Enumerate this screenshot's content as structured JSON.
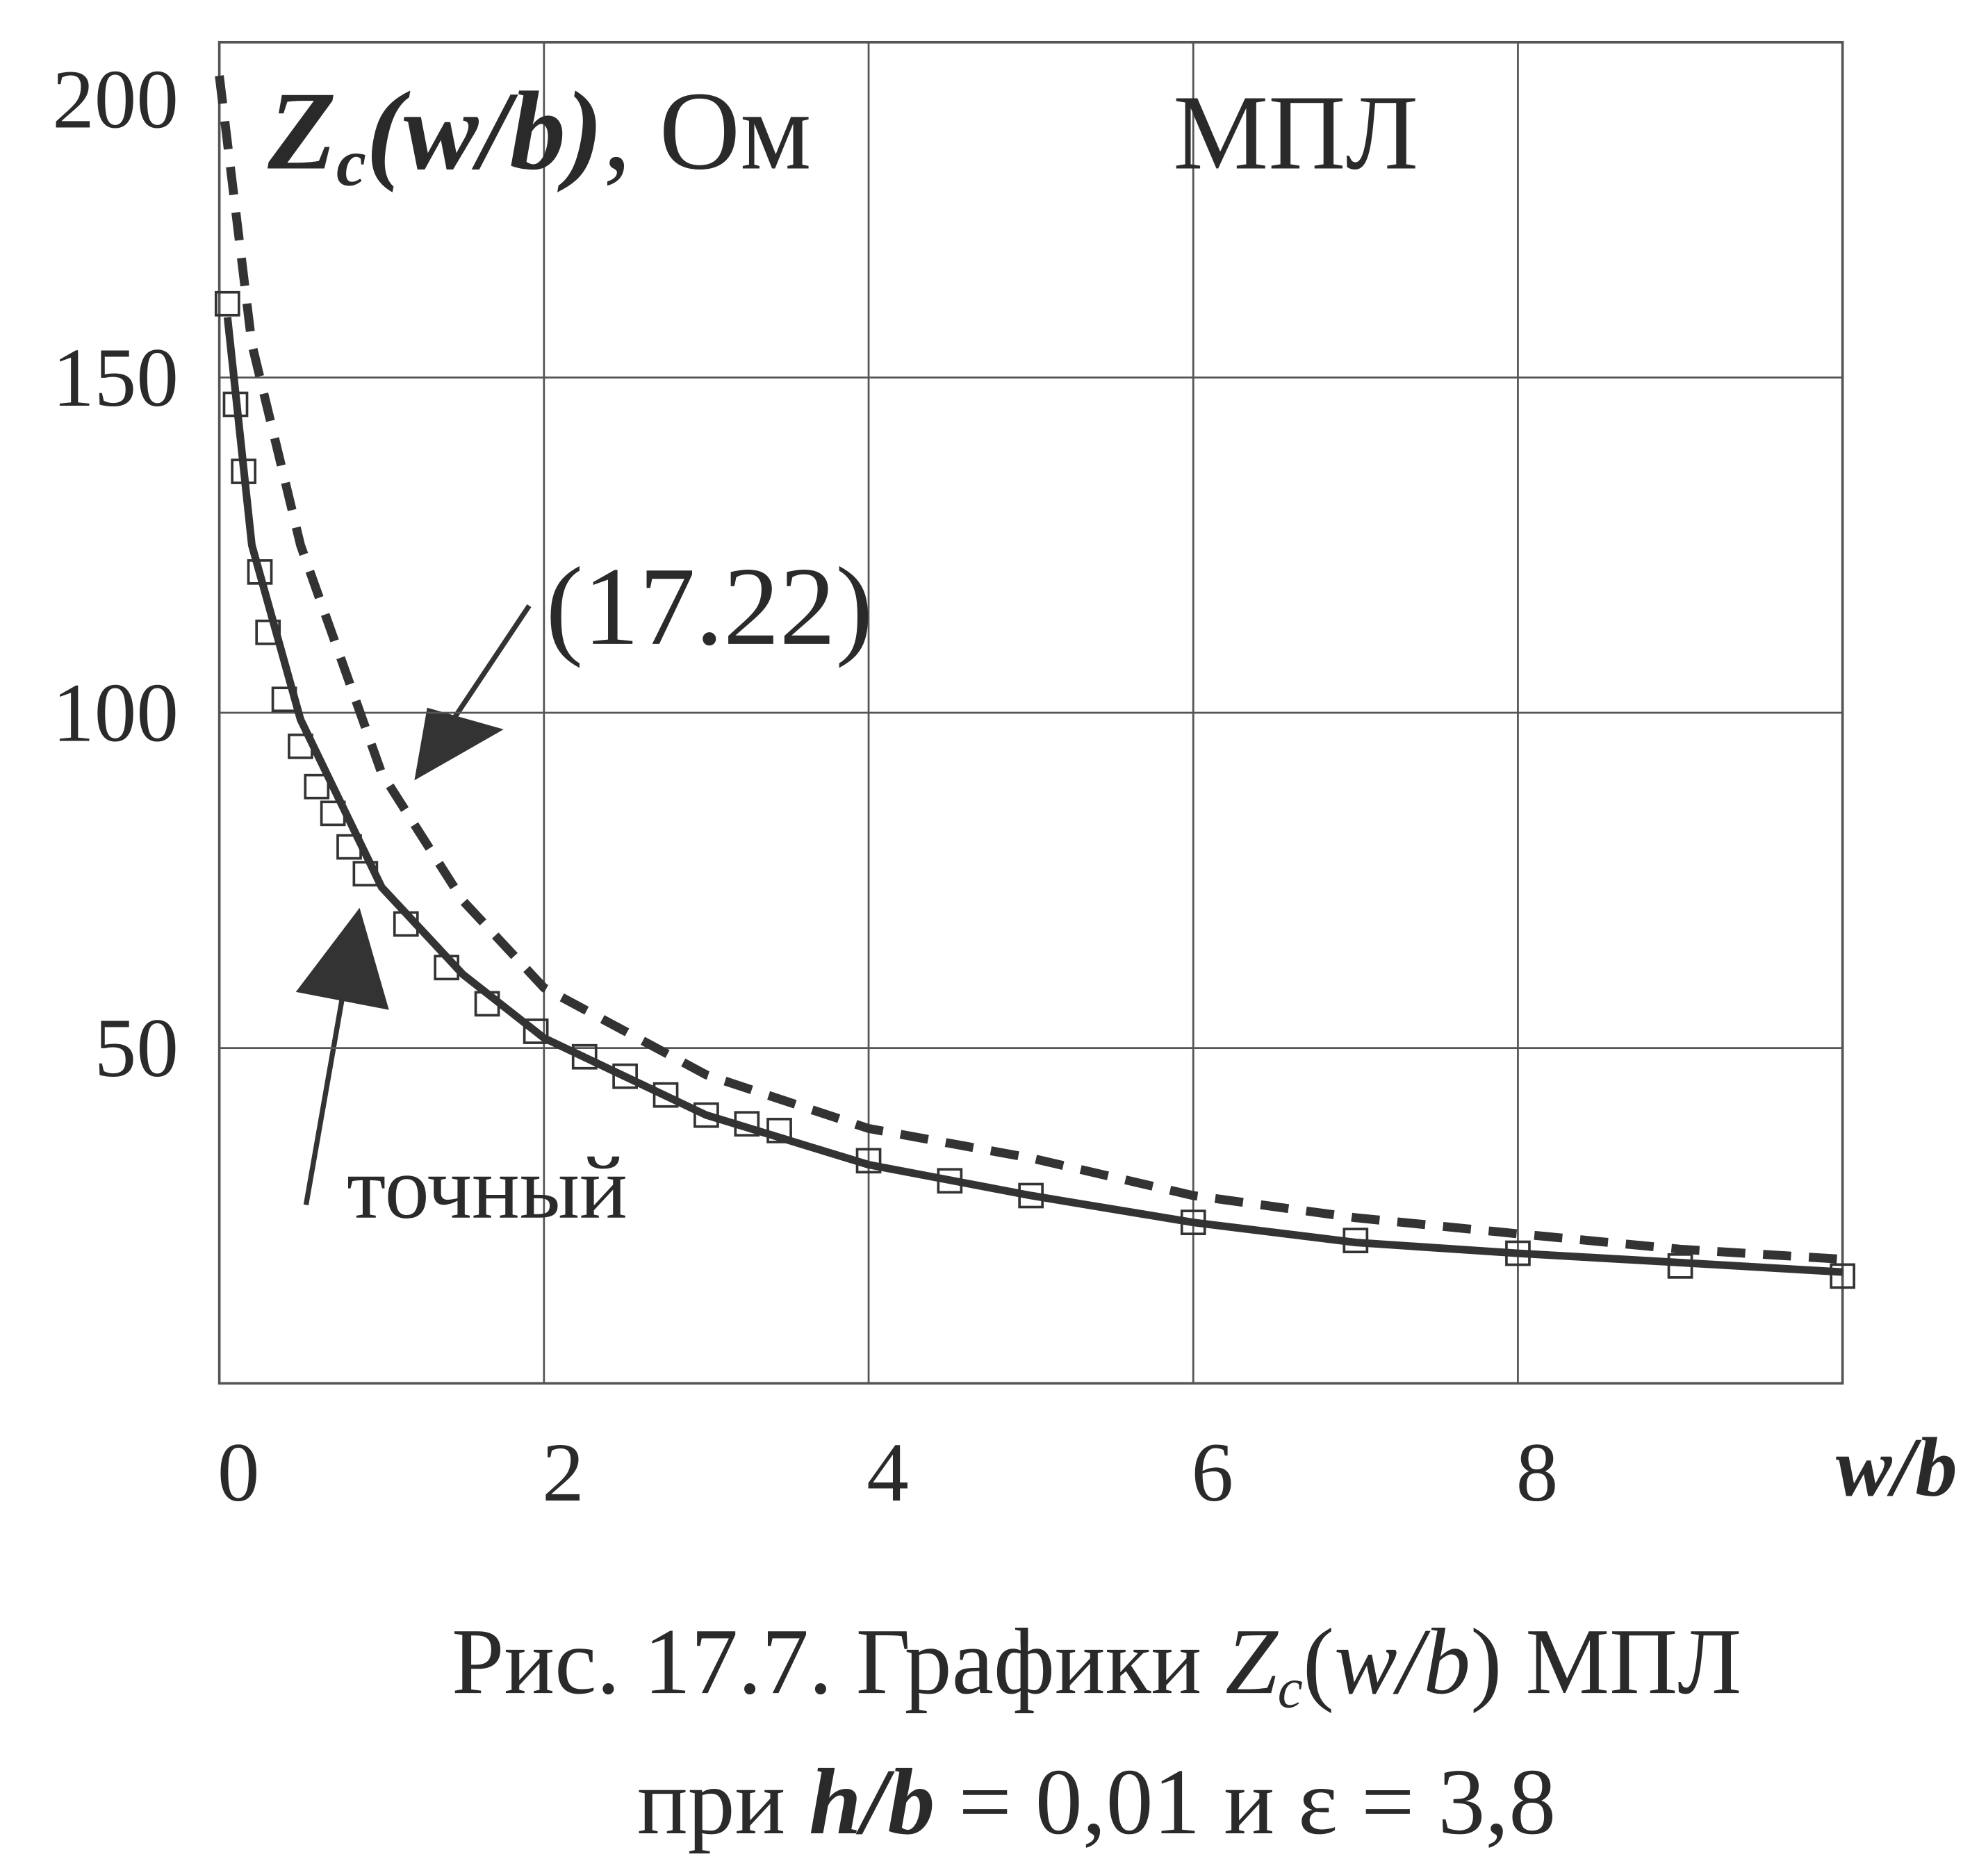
{
  "chart_data": {
    "type": "line",
    "title": [
      {
        "text": "Z",
        "italic": true,
        "bold": true
      },
      {
        "text": "c",
        "italic": true,
        "bold": true,
        "sub": true
      },
      {
        "text": "(w/b)",
        "italic": true,
        "bold": true
      },
      {
        "text": ", Ом"
      }
    ],
    "annotation": "МПЛ",
    "x_label": "w/b",
    "xlim": [
      0,
      10
    ],
    "xticks": [
      0,
      2,
      4,
      6,
      8
    ],
    "ylim": [
      0,
      200
    ],
    "yticks": [
      50,
      100,
      150,
      200
    ],
    "grid": true,
    "series": [
      {
        "name": "точный",
        "color": "#333333",
        "style": "solid",
        "x": [
          0.05,
          0.2,
          0.5,
          1,
          1.5,
          2,
          3,
          4,
          5,
          6,
          7,
          8,
          9,
          10
        ],
        "values": [
          159,
          125,
          99,
          74,
          61,
          51.5,
          40,
          32.6,
          28,
          24,
          21,
          19.4,
          18,
          16.6
        ]
      },
      {
        "name": "(17.22)",
        "color": "#333333",
        "style": "dashed",
        "x": [
          0,
          0.2,
          0.5,
          1,
          1.5,
          2,
          3,
          4,
          5,
          6,
          7,
          8,
          9,
          10
        ],
        "values": [
          195,
          155,
          125,
          91,
          72,
          59,
          46,
          38,
          33.6,
          28,
          24.7,
          22.3,
          20,
          18.5
        ]
      },
      {
        "color": "#333333",
        "style": "squares",
        "x": [
          0.05,
          0.1,
          0.15,
          0.25,
          0.3,
          0.4,
          0.5,
          0.6,
          0.7,
          0.8,
          0.9,
          1.15,
          1.4,
          1.65,
          1.95,
          2.25,
          2.5,
          2.75,
          3.0,
          3.25,
          3.45,
          4.0,
          4.5,
          5.0,
          6.0,
          7.0,
          8.0,
          9.0,
          10.0
        ],
        "values": [
          161,
          146,
          136,
          121,
          112,
          102,
          95,
          89,
          85,
          80,
          76,
          68.5,
          62,
          56.6,
          52.5,
          48.7,
          45.8,
          43,
          40,
          38.7,
          37.7,
          33.2,
          30.2,
          28,
          24,
          21.3,
          19.4,
          17.5,
          16
        ]
      }
    ],
    "caption": [
      [
        {
          "text": "Рис. 17.7. Графики "
        },
        {
          "text": "Z",
          "italic": true
        },
        {
          "text": "c",
          "italic": true,
          "sub": true
        },
        {
          "text": "("
        },
        {
          "text": "w/b",
          "italic": true
        },
        {
          "text": ") МПЛ"
        }
      ],
      [
        {
          "text": "при "
        },
        {
          "text": "h/b",
          "italic": true,
          "bold": true
        },
        {
          "text": " = 0,01 и  ε = 3,8"
        }
      ]
    ]
  }
}
